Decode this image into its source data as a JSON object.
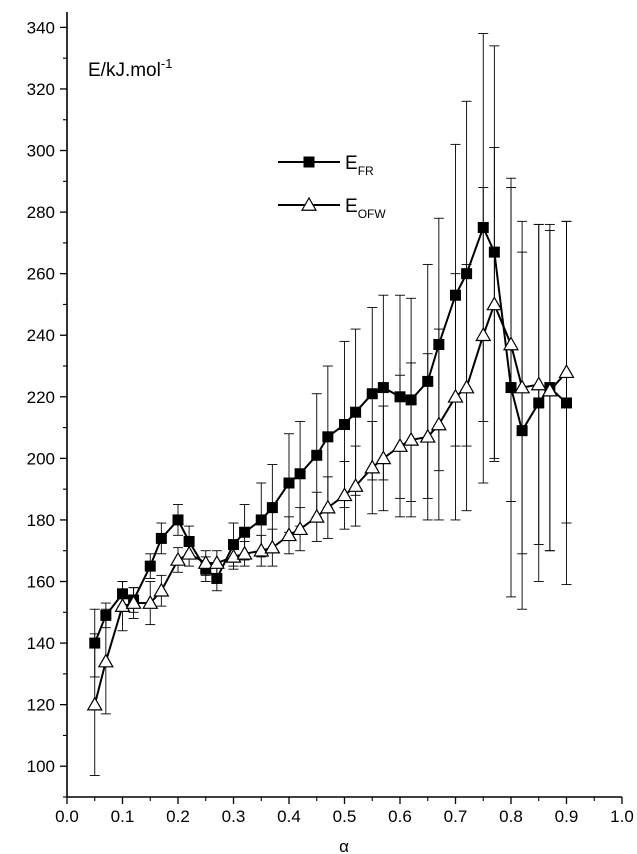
{
  "chart_data": {
    "type": "line",
    "ylabel_base": "E/kJ.mol",
    "ylabel_sup": "-1",
    "xlabel": "α",
    "xlim": [
      0.0,
      1.0
    ],
    "ylim": [
      90,
      345
    ],
    "xticks": [
      "0.0",
      "0.1",
      "0.2",
      "0.3",
      "0.4",
      "0.5",
      "0.6",
      "0.7",
      "0.8",
      "0.9",
      "1.0"
    ],
    "xtick_values": [
      0.0,
      0.1,
      0.2,
      0.3,
      0.4,
      0.5,
      0.6,
      0.7,
      0.8,
      0.9,
      1.0
    ],
    "yticks": [
      "100",
      "120",
      "140",
      "160",
      "180",
      "200",
      "220",
      "240",
      "260",
      "280",
      "300",
      "320",
      "340"
    ],
    "ytick_values": [
      100,
      120,
      140,
      160,
      180,
      200,
      220,
      240,
      260,
      280,
      300,
      320,
      340
    ],
    "x": [
      0.05,
      0.07,
      0.1,
      0.12,
      0.15,
      0.17,
      0.2,
      0.22,
      0.25,
      0.27,
      0.3,
      0.32,
      0.35,
      0.37,
      0.4,
      0.42,
      0.45,
      0.47,
      0.5,
      0.52,
      0.55,
      0.57,
      0.6,
      0.62,
      0.65,
      0.67,
      0.7,
      0.72,
      0.75,
      0.77,
      0.8,
      0.82,
      0.85,
      0.87,
      0.9
    ],
    "legend_position": "upper-middle",
    "series": [
      {
        "name_base": "E",
        "name_sub": "FR",
        "marker": "filled-square",
        "values": [
          140,
          149,
          156,
          154,
          165,
          174,
          180,
          173,
          164,
          161,
          172,
          176,
          180,
          184,
          192,
          195,
          201,
          207,
          211,
          215,
          221,
          223,
          220,
          219,
          225,
          237,
          253,
          260,
          275,
          267,
          223,
          209,
          218,
          223,
          218
        ],
        "err": [
          11,
          4,
          4,
          4,
          4,
          5,
          5,
          5,
          4,
          4,
          7,
          9,
          12,
          14,
          16,
          17,
          20,
          23,
          27,
          27,
          28,
          30,
          33,
          33,
          38,
          41,
          49,
          56,
          63,
          67,
          68,
          58,
          58,
          53,
          59
        ]
      },
      {
        "name_base": "E",
        "name_sub": "OFW",
        "marker": "open-triangle",
        "values": [
          120,
          134,
          152,
          153,
          153,
          157,
          167,
          169,
          166,
          166,
          168,
          169,
          170,
          171,
          175,
          177,
          181,
          184,
          188,
          191,
          197,
          200,
          204,
          206,
          207,
          211,
          220,
          223,
          240,
          250,
          237,
          223,
          224,
          222,
          228
        ],
        "err": [
          23,
          17,
          8,
          5,
          7,
          5,
          4,
          4,
          4,
          4,
          4,
          4,
          5,
          6,
          6,
          7,
          8,
          10,
          11,
          13,
          15,
          17,
          23,
          25,
          27,
          31,
          40,
          40,
          48,
          51,
          51,
          54,
          52,
          52,
          49
        ]
      }
    ]
  }
}
